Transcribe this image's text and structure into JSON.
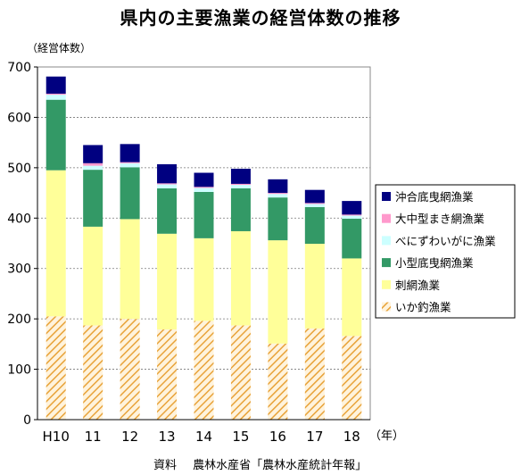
{
  "chart_data": {
    "type": "bar",
    "stacked": true,
    "title": "県内の主要漁業の経営体数の推移",
    "ylabel": "（経営体数）",
    "xunit": "（年）",
    "ylim": [
      0,
      700
    ],
    "yticks": [
      0,
      100,
      200,
      300,
      400,
      500,
      600,
      700
    ],
    "grid": true,
    "legend_position": "right",
    "categories": [
      "H10",
      "11",
      "12",
      "13",
      "14",
      "15",
      "16",
      "17",
      "18"
    ],
    "series": [
      {
        "name": "いか釣漁業",
        "color": "#e8a33a",
        "pattern": "hatch",
        "values": [
          205,
          187,
          200,
          179,
          196,
          187,
          151,
          181,
          166
        ]
      },
      {
        "name": "刺網漁業",
        "color": "#ffff99",
        "values": [
          290,
          196,
          198,
          190,
          164,
          187,
          205,
          168,
          154
        ]
      },
      {
        "name": "小型底曳網漁業",
        "color": "#339966",
        "values": [
          140,
          113,
          103,
          90,
          92,
          85,
          85,
          73,
          79
        ]
      },
      {
        "name": "べにずわいがに漁業",
        "color": "#ccffff",
        "values": [
          10,
          8,
          8,
          8,
          8,
          7,
          7,
          6,
          6
        ]
      },
      {
        "name": "大中型まき網漁業",
        "color": "#ff99cc",
        "values": [
          2,
          5,
          2,
          2,
          2,
          2,
          2,
          2,
          2
        ]
      },
      {
        "name": "沖合底曳網漁業",
        "color": "#000080",
        "values": [
          34,
          36,
          36,
          38,
          28,
          30,
          27,
          26,
          27
        ]
      }
    ]
  },
  "footer": {
    "source_label": "資料",
    "source_text": "農林水産省「農林水産統計年報」"
  }
}
